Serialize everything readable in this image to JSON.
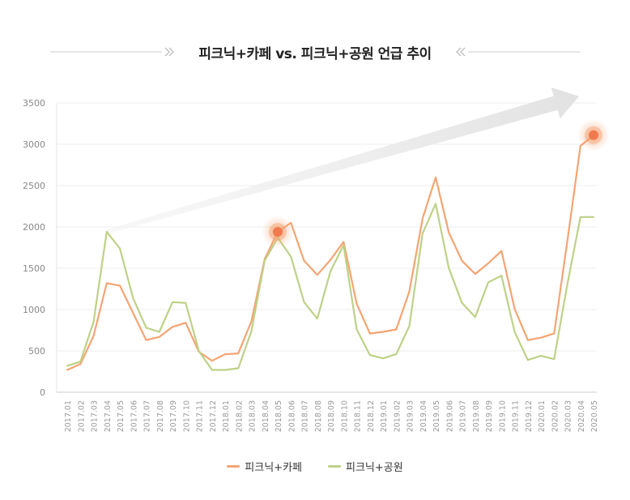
{
  "chart_data": {
    "type": "line",
    "title": "피크닉+카페 vs. 피크닉+공원 언급 추이",
    "xlabel": "",
    "ylabel": "",
    "ylim": [
      0,
      3500
    ],
    "yticks": [
      0,
      500,
      1000,
      1500,
      2000,
      2500,
      3000,
      3500
    ],
    "grid": "horizontal",
    "legend_position": "bottom",
    "x": [
      "2017.01",
      "2017.02",
      "2017.03",
      "2017.04",
      "2017.05",
      "2017.06",
      "2017.07",
      "2017.08",
      "2017.09",
      "2017.10",
      "2017.11",
      "2017.12",
      "2018.01",
      "2018.02",
      "2018.03",
      "2018.04",
      "2018.05",
      "2018.06",
      "2018.07",
      "2018.08",
      "2018.09",
      "2018.10",
      "2018.11",
      "2018.12",
      "2019.01",
      "2019.02",
      "2019.03",
      "2019.04",
      "2019.05",
      "2019.06",
      "2019.07",
      "2019.08",
      "2019.09",
      "2019.10",
      "2019.11",
      "2019.12",
      "2020.01",
      "2020.02",
      "2020.03",
      "2020.04",
      "2020.05"
    ],
    "series": [
      {
        "name": "피크닉+카페",
        "color": "#f5a472",
        "values": [
          270,
          340,
          680,
          1320,
          1290,
          960,
          630,
          670,
          790,
          840,
          490,
          380,
          460,
          470,
          860,
          1610,
          1940,
          2050,
          1590,
          1420,
          1600,
          1820,
          1070,
          710,
          730,
          760,
          1220,
          2100,
          2600,
          1930,
          1590,
          1430,
          1560,
          1710,
          1010,
          630,
          660,
          710,
          1820,
          2980,
          3110
        ]
      },
      {
        "name": "피크닉+공원",
        "color": "#bed187",
        "values": [
          320,
          370,
          850,
          1940,
          1740,
          1140,
          780,
          730,
          1090,
          1080,
          500,
          270,
          270,
          290,
          740,
          1590,
          1870,
          1640,
          1090,
          890,
          1460,
          1780,
          760,
          450,
          410,
          460,
          800,
          1920,
          2280,
          1500,
          1080,
          910,
          1330,
          1410,
          730,
          390,
          440,
          400,
          1300,
          2120,
          2120
        ]
      }
    ],
    "highlights": [
      {
        "series": 0,
        "index": 16,
        "color": "#f07a4e"
      },
      {
        "series": 0,
        "index": 40,
        "color": "#f07a4e"
      }
    ],
    "trend_arrow": {
      "from": [
        "2017.04",
        1940
      ],
      "to": [
        "2020.05",
        3580
      ],
      "color": "#eaeaea"
    }
  }
}
